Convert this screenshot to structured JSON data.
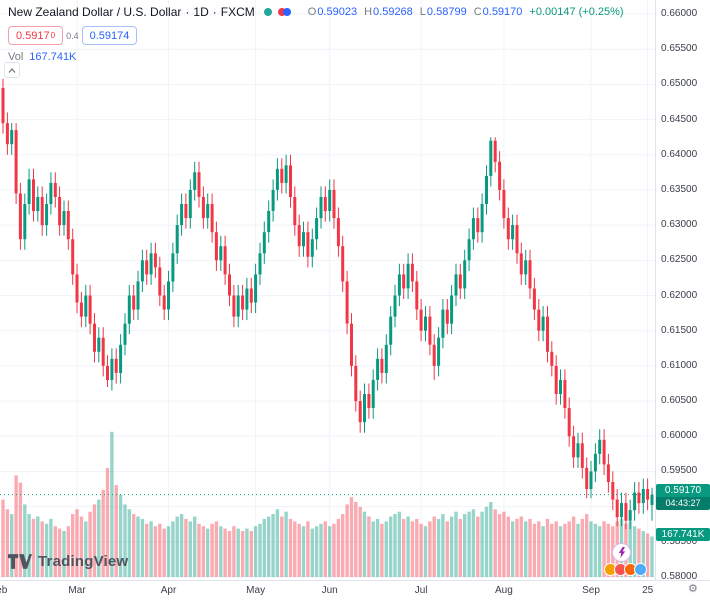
{
  "header": {
    "symbol_title": "New Zealand Dollar / U.S. Dollar",
    "sep": "·",
    "timeframe": "1D",
    "exchange": "FXCM",
    "ohlc": {
      "o_label": "O",
      "o": "0.59023",
      "h_label": "H",
      "h": "0.59268",
      "l_label": "L",
      "l": "0.58799",
      "c_label": "C",
      "c": "0.59170",
      "change": "+0.00147 (+0.25%)"
    },
    "sell_price": "0.5917",
    "sell_sup": "0",
    "spread": "0.4",
    "buy_price": "0.59174",
    "vol_label": "Vol",
    "vol_value": "167.741K"
  },
  "badges": {
    "last_price": "0.59170",
    "countdown": "04:43:27",
    "volume": "167.741K"
  },
  "footer": {
    "logo_text": "TradingView"
  },
  "icons": {
    "gear": "⚙"
  },
  "colors": {
    "up": "#089981",
    "down": "#f23645",
    "blue": "#2962ff",
    "text": "#131722",
    "muted": "#787b86",
    "grid": "#f0f3fa",
    "axis_text": "#3a3e4a",
    "badge_green": "#089981"
  },
  "chart_data": {
    "type": "candlestick",
    "title": "New Zealand Dollar / U.S. Dollar",
    "timeframe": "1D",
    "source": "FXCM",
    "legend_position": "top-left",
    "grid": true,
    "y_range": [
      0.58,
      0.66
    ],
    "y_tick_step": 0.005,
    "price_ticks": [
      "0.66000",
      "0.65500",
      "0.65000",
      "0.64500",
      "0.64000",
      "0.63500",
      "0.63000",
      "0.62500",
      "0.62000",
      "0.61500",
      "0.61000",
      "0.60500",
      "0.60000",
      "0.59500",
      "0.59000",
      "0.58500",
      "0.58000"
    ],
    "time_labels": [
      {
        "text": "Feb",
        "i": -1
      },
      {
        "text": "Mar",
        "i": 17
      },
      {
        "text": "Apr",
        "i": 38
      },
      {
        "text": "May",
        "i": 58
      },
      {
        "text": "Jun",
        "i": 75
      },
      {
        "text": "Jul",
        "i": 96
      },
      {
        "text": "Aug",
        "i": 115
      },
      {
        "text": "Sep",
        "i": 135
      },
      {
        "text": "25",
        "i": 148
      }
    ],
    "last_bar": {
      "open": 0.59023,
      "high": 0.59268,
      "low": 0.58799,
      "close": 0.5917,
      "change": 0.00147,
      "change_pct": 0.25,
      "volume_k": 167.741
    },
    "last_price": 0.5917,
    "countdown": "04:43:27",
    "candles": [
      [
        0.6495,
        0.6508,
        0.643,
        0.6445
      ],
      [
        0.6445,
        0.646,
        0.64,
        0.6415
      ],
      [
        0.6415,
        0.6445,
        0.64,
        0.6435
      ],
      [
        0.6435,
        0.6445,
        0.633,
        0.6345
      ],
      [
        0.6345,
        0.636,
        0.6265,
        0.628
      ],
      [
        0.628,
        0.6345,
        0.6265,
        0.633
      ],
      [
        0.633,
        0.638,
        0.6315,
        0.6365
      ],
      [
        0.6365,
        0.638,
        0.6305,
        0.632
      ],
      [
        0.632,
        0.6355,
        0.6305,
        0.634
      ],
      [
        0.634,
        0.6355,
        0.6285,
        0.63
      ],
      [
        0.63,
        0.6345,
        0.6285,
        0.633
      ],
      [
        0.633,
        0.6375,
        0.6315,
        0.636
      ],
      [
        0.636,
        0.6375,
        0.6325,
        0.634
      ],
      [
        0.634,
        0.6355,
        0.6285,
        0.63
      ],
      [
        0.63,
        0.6335,
        0.6285,
        0.632
      ],
      [
        0.632,
        0.6335,
        0.6265,
        0.628
      ],
      [
        0.628,
        0.6295,
        0.6215,
        0.623
      ],
      [
        0.623,
        0.6245,
        0.6175,
        0.619
      ],
      [
        0.619,
        0.6205,
        0.6155,
        0.617
      ],
      [
        0.617,
        0.6215,
        0.6155,
        0.62
      ],
      [
        0.62,
        0.6215,
        0.6145,
        0.616
      ],
      [
        0.616,
        0.6175,
        0.6105,
        0.612
      ],
      [
        0.612,
        0.6155,
        0.6105,
        0.614
      ],
      [
        0.614,
        0.6155,
        0.6085,
        0.61
      ],
      [
        0.61,
        0.6115,
        0.607,
        0.608
      ],
      [
        0.608,
        0.6125,
        0.6065,
        0.611
      ],
      [
        0.611,
        0.6125,
        0.6075,
        0.609
      ],
      [
        0.609,
        0.6145,
        0.6075,
        0.613
      ],
      [
        0.613,
        0.6175,
        0.6115,
        0.616
      ],
      [
        0.616,
        0.6215,
        0.6145,
        0.62
      ],
      [
        0.62,
        0.6215,
        0.6165,
        0.618
      ],
      [
        0.618,
        0.6235,
        0.6165,
        0.622
      ],
      [
        0.622,
        0.6265,
        0.6205,
        0.625
      ],
      [
        0.625,
        0.6265,
        0.6215,
        0.623
      ],
      [
        0.623,
        0.6275,
        0.6215,
        0.626
      ],
      [
        0.626,
        0.6275,
        0.6225,
        0.624
      ],
      [
        0.624,
        0.6255,
        0.6185,
        0.62
      ],
      [
        0.62,
        0.6215,
        0.6165,
        0.618
      ],
      [
        0.618,
        0.6235,
        0.6165,
        0.622
      ],
      [
        0.622,
        0.6275,
        0.6205,
        0.626
      ],
      [
        0.626,
        0.6315,
        0.6245,
        0.63
      ],
      [
        0.63,
        0.6345,
        0.6285,
        0.633
      ],
      [
        0.633,
        0.6345,
        0.6295,
        0.631
      ],
      [
        0.631,
        0.6365,
        0.6295,
        0.635
      ],
      [
        0.635,
        0.639,
        0.6335,
        0.6375
      ],
      [
        0.6375,
        0.639,
        0.6325,
        0.634
      ],
      [
        0.634,
        0.6355,
        0.6295,
        0.631
      ],
      [
        0.631,
        0.6345,
        0.6295,
        0.633
      ],
      [
        0.633,
        0.6345,
        0.6275,
        0.629
      ],
      [
        0.629,
        0.6305,
        0.6235,
        0.625
      ],
      [
        0.625,
        0.6285,
        0.6235,
        0.627
      ],
      [
        0.627,
        0.6285,
        0.6215,
        0.623
      ],
      [
        0.623,
        0.6245,
        0.6185,
        0.62
      ],
      [
        0.62,
        0.6215,
        0.6155,
        0.617
      ],
      [
        0.617,
        0.6215,
        0.6155,
        0.62
      ],
      [
        0.62,
        0.6215,
        0.6165,
        0.618
      ],
      [
        0.618,
        0.6225,
        0.6165,
        0.621
      ],
      [
        0.621,
        0.6225,
        0.6175,
        0.619
      ],
      [
        0.619,
        0.6245,
        0.6175,
        0.623
      ],
      [
        0.623,
        0.6275,
        0.6215,
        0.626
      ],
      [
        0.626,
        0.6305,
        0.6245,
        0.629
      ],
      [
        0.629,
        0.6335,
        0.6275,
        0.632
      ],
      [
        0.632,
        0.6365,
        0.6305,
        0.635
      ],
      [
        0.635,
        0.6395,
        0.6335,
        0.638
      ],
      [
        0.638,
        0.6395,
        0.6345,
        0.636
      ],
      [
        0.636,
        0.64,
        0.6345,
        0.6385
      ],
      [
        0.6385,
        0.64,
        0.6325,
        0.634
      ],
      [
        0.634,
        0.6355,
        0.6285,
        0.63
      ],
      [
        0.63,
        0.6315,
        0.6255,
        0.627
      ],
      [
        0.627,
        0.6305,
        0.6255,
        0.629
      ],
      [
        0.629,
        0.6305,
        0.624,
        0.6255
      ],
      [
        0.6255,
        0.6295,
        0.624,
        0.628
      ],
      [
        0.628,
        0.6325,
        0.6265,
        0.631
      ],
      [
        0.631,
        0.6355,
        0.6295,
        0.634
      ],
      [
        0.634,
        0.6355,
        0.6305,
        0.632
      ],
      [
        0.632,
        0.6365,
        0.6305,
        0.635
      ],
      [
        0.635,
        0.6365,
        0.6295,
        0.631
      ],
      [
        0.631,
        0.6325,
        0.6255,
        0.627
      ],
      [
        0.627,
        0.6285,
        0.6205,
        0.622
      ],
      [
        0.622,
        0.6235,
        0.6145,
        0.616
      ],
      [
        0.616,
        0.6175,
        0.6085,
        0.61
      ],
      [
        0.61,
        0.6115,
        0.6035,
        0.605
      ],
      [
        0.605,
        0.6065,
        0.6005,
        0.602
      ],
      [
        0.602,
        0.6075,
        0.6005,
        0.606
      ],
      [
        0.606,
        0.6075,
        0.6025,
        0.604
      ],
      [
        0.604,
        0.6095,
        0.6025,
        0.608
      ],
      [
        0.608,
        0.6125,
        0.6065,
        0.611
      ],
      [
        0.611,
        0.6125,
        0.6075,
        0.609
      ],
      [
        0.609,
        0.6145,
        0.6075,
        0.613
      ],
      [
        0.613,
        0.6185,
        0.6115,
        0.617
      ],
      [
        0.617,
        0.6215,
        0.6155,
        0.62
      ],
      [
        0.62,
        0.6245,
        0.6185,
        0.623
      ],
      [
        0.623,
        0.6245,
        0.6195,
        0.621
      ],
      [
        0.621,
        0.626,
        0.6195,
        0.6245
      ],
      [
        0.6245,
        0.626,
        0.6205,
        0.622
      ],
      [
        0.622,
        0.6235,
        0.6165,
        0.618
      ],
      [
        0.618,
        0.6195,
        0.6135,
        0.615
      ],
      [
        0.615,
        0.6185,
        0.6135,
        0.617
      ],
      [
        0.617,
        0.6185,
        0.6115,
        0.613
      ],
      [
        0.613,
        0.6145,
        0.608,
        0.61
      ],
      [
        0.61,
        0.6155,
        0.6085,
        0.614
      ],
      [
        0.614,
        0.6195,
        0.6125,
        0.618
      ],
      [
        0.618,
        0.6195,
        0.6145,
        0.616
      ],
      [
        0.616,
        0.6215,
        0.6145,
        0.62
      ],
      [
        0.62,
        0.6245,
        0.6185,
        0.623
      ],
      [
        0.623,
        0.6245,
        0.6195,
        0.621
      ],
      [
        0.621,
        0.6265,
        0.6195,
        0.625
      ],
      [
        0.625,
        0.6295,
        0.6235,
        0.628
      ],
      [
        0.628,
        0.6325,
        0.6265,
        0.631
      ],
      [
        0.631,
        0.6325,
        0.6275,
        0.629
      ],
      [
        0.629,
        0.6345,
        0.6275,
        0.633
      ],
      [
        0.633,
        0.6385,
        0.6315,
        0.637
      ],
      [
        0.637,
        0.6425,
        0.6355,
        0.642
      ],
      [
        0.642,
        0.6425,
        0.6375,
        0.639
      ],
      [
        0.639,
        0.6405,
        0.6335,
        0.635
      ],
      [
        0.635,
        0.6365,
        0.6295,
        0.631
      ],
      [
        0.631,
        0.6325,
        0.6265,
        0.628
      ],
      [
        0.628,
        0.6315,
        0.6265,
        0.63
      ],
      [
        0.63,
        0.6315,
        0.6245,
        0.626
      ],
      [
        0.626,
        0.6275,
        0.6215,
        0.623
      ],
      [
        0.623,
        0.6265,
        0.6215,
        0.625
      ],
      [
        0.625,
        0.6265,
        0.6195,
        0.621
      ],
      [
        0.621,
        0.6225,
        0.6165,
        0.618
      ],
      [
        0.618,
        0.6195,
        0.6135,
        0.615
      ],
      [
        0.615,
        0.6185,
        0.6135,
        0.617
      ],
      [
        0.617,
        0.6185,
        0.6105,
        0.612
      ],
      [
        0.612,
        0.6135,
        0.6085,
        0.61
      ],
      [
        0.61,
        0.6115,
        0.6045,
        0.606
      ],
      [
        0.606,
        0.6095,
        0.6045,
        0.608
      ],
      [
        0.608,
        0.6095,
        0.6025,
        0.604
      ],
      [
        0.604,
        0.6055,
        0.5985,
        0.6
      ],
      [
        0.6,
        0.6015,
        0.5955,
        0.597
      ],
      [
        0.597,
        0.6005,
        0.5955,
        0.599
      ],
      [
        0.599,
        0.6005,
        0.594,
        0.5955
      ],
      [
        0.5955,
        0.597,
        0.5912,
        0.5925
      ],
      [
        0.5925,
        0.5965,
        0.5912,
        0.595
      ],
      [
        0.595,
        0.599,
        0.5935,
        0.5975
      ],
      [
        0.5975,
        0.601,
        0.596,
        0.5995
      ],
      [
        0.5995,
        0.601,
        0.5945,
        0.596
      ],
      [
        0.596,
        0.5975,
        0.592,
        0.5935
      ],
      [
        0.5935,
        0.595,
        0.5895,
        0.591
      ],
      [
        0.591,
        0.5925,
        0.5872,
        0.5885
      ],
      [
        0.5885,
        0.592,
        0.5872,
        0.5905
      ],
      [
        0.5905,
        0.592,
        0.5868,
        0.588
      ],
      [
        0.588,
        0.591,
        0.5868,
        0.5895
      ],
      [
        0.5895,
        0.5935,
        0.588,
        0.592
      ],
      [
        0.592,
        0.5935,
        0.589,
        0.5905
      ],
      [
        0.5905,
        0.594,
        0.589,
        0.5925
      ],
      [
        0.5925,
        0.594,
        0.5895,
        0.591
      ],
      [
        0.59023,
        0.59268,
        0.58799,
        0.5917
      ]
    ],
    "volumes_k": [
      320,
      280,
      260,
      420,
      390,
      300,
      260,
      240,
      250,
      230,
      220,
      240,
      210,
      200,
      190,
      210,
      260,
      280,
      250,
      230,
      270,
      300,
      320,
      360,
      450,
      600,
      380,
      340,
      300,
      280,
      260,
      250,
      240,
      220,
      230,
      210,
      220,
      200,
      210,
      230,
      250,
      260,
      240,
      230,
      250,
      220,
      210,
      200,
      220,
      230,
      210,
      200,
      190,
      210,
      200,
      190,
      200,
      190,
      210,
      220,
      240,
      250,
      260,
      280,
      250,
      270,
      240,
      230,
      220,
      210,
      230,
      200,
      210,
      220,
      230,
      210,
      220,
      240,
      260,
      300,
      330,
      310,
      290,
      270,
      250,
      230,
      240,
      220,
      230,
      250,
      260,
      270,
      240,
      250,
      230,
      240,
      220,
      210,
      230,
      250,
      240,
      260,
      230,
      250,
      270,
      240,
      260,
      270,
      280,
      250,
      270,
      290,
      310,
      280,
      260,
      270,
      250,
      230,
      240,
      250,
      230,
      240,
      220,
      230,
      210,
      240,
      220,
      230,
      210,
      220,
      230,
      250,
      220,
      240,
      260,
      230,
      220,
      210,
      230,
      220,
      210,
      230,
      240,
      220,
      230,
      210,
      200,
      190,
      180,
      167.741
    ]
  }
}
